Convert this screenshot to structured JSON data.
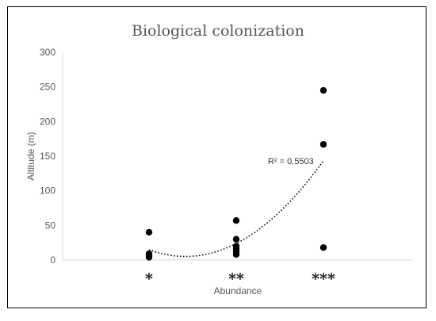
{
  "chart_data": {
    "type": "scatter",
    "title": "Biological colonization",
    "xlabel": "Abundance",
    "ylabel": "Altitude (m)",
    "ylim": [
      0,
      300
    ],
    "yticks": [
      "0",
      "50",
      "100",
      "150",
      "200",
      "250",
      "300"
    ],
    "categories": [
      "*",
      "**",
      "***"
    ],
    "points": [
      {
        "x": 1,
        "y": 40
      },
      {
        "x": 1,
        "y": 9
      },
      {
        "x": 1,
        "y": 6
      },
      {
        "x": 1,
        "y": 4
      },
      {
        "x": 2,
        "y": 57
      },
      {
        "x": 2,
        "y": 30
      },
      {
        "x": 2,
        "y": 20
      },
      {
        "x": 2,
        "y": 16
      },
      {
        "x": 2,
        "y": 12
      },
      {
        "x": 2,
        "y": 8
      },
      {
        "x": 3,
        "y": 245
      },
      {
        "x": 3,
        "y": 167
      },
      {
        "x": 3,
        "y": 18
      }
    ],
    "trendline": {
      "type": "polynomial",
      "order": 2,
      "style": "dotted",
      "label": "R² = 0.5503"
    },
    "grid": false,
    "legend": "none",
    "colors": {
      "points": "#000000",
      "trendline": "#000000",
      "axis": "#d9d9d9"
    }
  }
}
